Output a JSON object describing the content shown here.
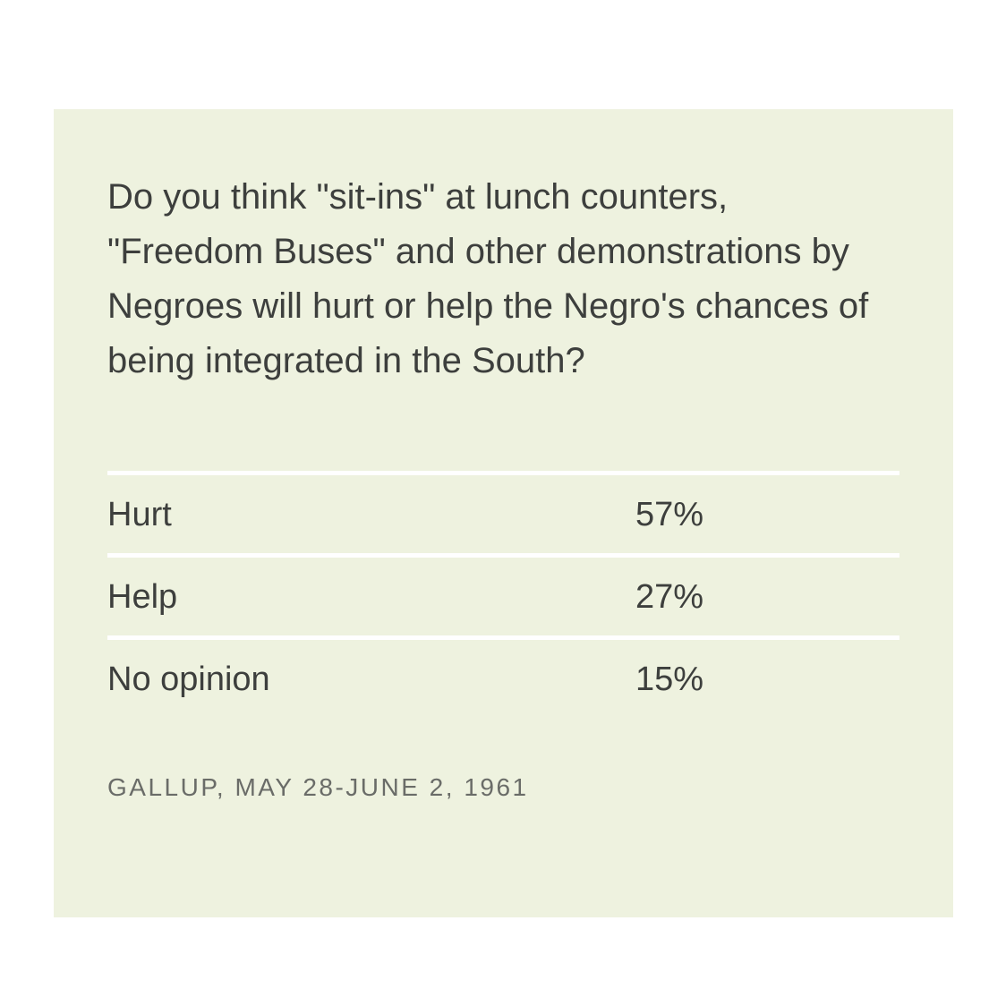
{
  "question": "Do you think \"sit-ins\" at lunch counters, \"Freedom Buses\" and other demonstrations by Negroes will hurt or help the Negro's chances of being integrated in the South?",
  "source": "GALLUP, MAY 28-JUNE 2, 1961",
  "colors": {
    "background": "#eef2df",
    "divider": "#ffffff",
    "text": "#3d3f3d",
    "source_text": "#6a6c68"
  },
  "chart_data": {
    "type": "table",
    "title": "Do you think \"sit-ins\" at lunch counters, \"Freedom Buses\" and other demonstrations by Negroes will hurt or help the Negro's chances of being integrated in the South?",
    "categories": [
      "Hurt",
      "Help",
      "No opinion"
    ],
    "values": [
      57,
      27,
      15
    ],
    "rows": [
      {
        "label": "Hurt",
        "value": "57%"
      },
      {
        "label": "Help",
        "value": "27%"
      },
      {
        "label": "No opinion",
        "value": "15%"
      }
    ],
    "source": "GALLUP, MAY 28-JUNE 2, 1961"
  }
}
